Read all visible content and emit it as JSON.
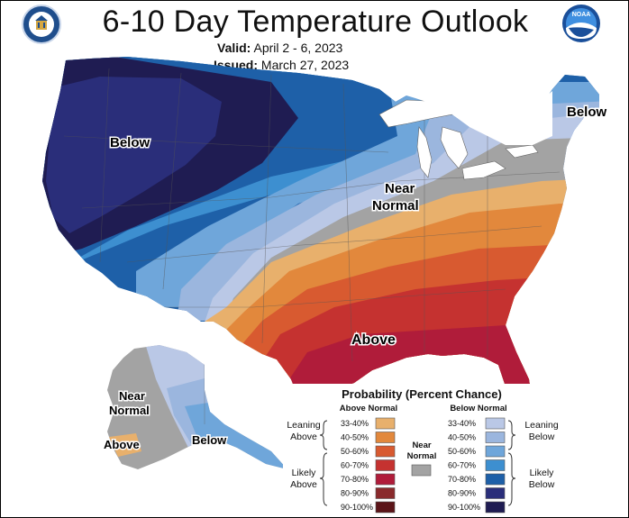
{
  "header": {
    "title": "6-10 Day Temperature Outlook",
    "valid_label": "Valid:",
    "valid_value": "April 2 - 6, 2023",
    "issued_label": "Issued:",
    "issued_value": "March 27, 2023"
  },
  "logos": {
    "left_icon": "doc-seal-icon",
    "right_icon": "noaa-logo-icon",
    "noaa_text": "NOAA"
  },
  "map_labels": {
    "west": "Below",
    "northeast": "Below",
    "central_1": "Near",
    "central_2": "Normal",
    "southeast": "Above",
    "alaska_near_1": "Near",
    "alaska_near_2": "Normal",
    "alaska_above": "Above",
    "alaska_below": "Below"
  },
  "legend": {
    "title": "Probability (Percent Chance)",
    "above_header": "Above Normal",
    "below_header": "Below Normal",
    "near_label_1": "Near",
    "near_label_2": "Normal",
    "leaning_above_1": "Leaning",
    "leaning_above_2": "Above",
    "likely_above_1": "Likely",
    "likely_above_2": "Above",
    "leaning_below_1": "Leaning",
    "leaning_below_2": "Below",
    "likely_below_1": "Likely",
    "likely_below_2": "Below",
    "near_color": "#a3a3a3",
    "above": [
      {
        "label": "33-40%",
        "color": "#e8b06c"
      },
      {
        "label": "40-50%",
        "color": "#e2883c"
      },
      {
        "label": "50-60%",
        "color": "#d85a30"
      },
      {
        "label": "60-70%",
        "color": "#c53230"
      },
      {
        "label": "70-80%",
        "color": "#b01c3a"
      },
      {
        "label": "80-90%",
        "color": "#8a2a2c"
      },
      {
        "label": "90-100%",
        "color": "#5b1418"
      }
    ],
    "below": [
      {
        "label": "33-40%",
        "color": "#bac8e6"
      },
      {
        "label": "40-50%",
        "color": "#9bb6de"
      },
      {
        "label": "50-60%",
        "color": "#6fa6da"
      },
      {
        "label": "60-70%",
        "color": "#3d8fd0"
      },
      {
        "label": "70-80%",
        "color": "#1e60a8"
      },
      {
        "label": "80-90%",
        "color": "#2a2e7a"
      },
      {
        "label": "90-100%",
        "color": "#1f1c52"
      }
    ]
  }
}
